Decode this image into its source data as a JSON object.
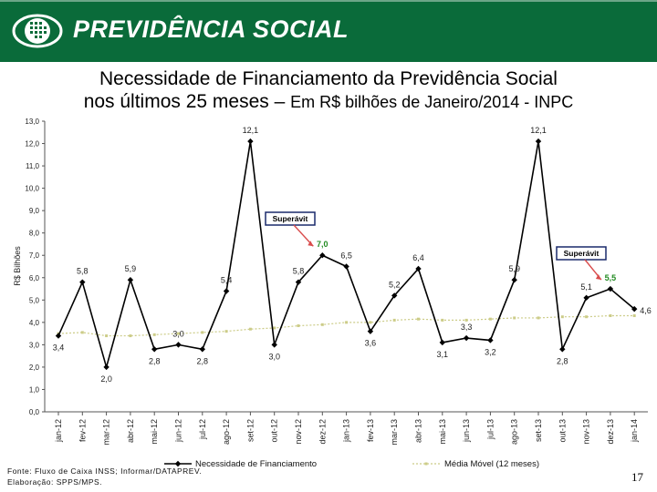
{
  "header": {
    "brand": "PREVIDÊNCIA SOCIAL"
  },
  "title": {
    "line1": "Necessidade de Financiamento da Previdência Social",
    "line2_main": "nos últimos 25 meses – ",
    "line2_sub": "Em R$ bilhões de Janeiro/2014 - INPC"
  },
  "source": {
    "line1": "Fonte: Fluxo de Caixa INSS; Informar/DATAPREV.",
    "line2": "Elaboração: SPPS/MPS."
  },
  "page_number": "17",
  "colors": {
    "header": "#0a6b3a",
    "series_main": "#000000",
    "series_avg": "#cccc88",
    "annotation_box": "#1a2a6c"
  },
  "chart_data": {
    "type": "line",
    "ylabel": "R$ Bilhões",
    "ylim": [
      0,
      13
    ],
    "yticks": [
      "0,0",
      "1,0",
      "2,0",
      "3,0",
      "4,0",
      "5,0",
      "6,0",
      "7,0",
      "8,0",
      "9,0",
      "10,0",
      "11,0",
      "12,0",
      "13,0"
    ],
    "categories": [
      "jan-12",
      "fev-12",
      "mar-12",
      "abr-12",
      "mai-12",
      "jun-12",
      "jul-12",
      "ago-12",
      "set-12",
      "out-12",
      "nov-12",
      "dez-12",
      "jan-13",
      "fev-13",
      "mar-13",
      "abr-13",
      "mai-13",
      "jun-13",
      "jul-13",
      "ago-13",
      "set-13",
      "out-13",
      "nov-13",
      "dez-13",
      "jan-14"
    ],
    "series": [
      {
        "name": "Necessidade de Financiamento",
        "values": [
          3.4,
          5.8,
          2.0,
          5.9,
          2.8,
          3.0,
          2.8,
          5.4,
          12.1,
          3.0,
          5.8,
          7.0,
          6.5,
          3.6,
          5.2,
          6.4,
          3.1,
          3.3,
          3.2,
          5.9,
          12.1,
          2.8,
          5.1,
          5.5,
          4.6
        ],
        "labels": [
          "3,4",
          "5,8",
          "2,0",
          "5,9",
          "2,8",
          "3,0",
          "2,8",
          "5,4",
          "12,1",
          "3,0",
          "5,8",
          "7,0",
          "6,5",
          "3,6",
          "5,2",
          "6,4",
          "3,1",
          "3,3",
          "3,2",
          "5,9",
          "12,1",
          "2,8",
          "5,1",
          "5,5",
          "4,6"
        ]
      },
      {
        "name": "Média Móvel (12 meses)",
        "values": [
          3.5,
          3.55,
          3.4,
          3.4,
          3.45,
          3.5,
          3.55,
          3.6,
          3.7,
          3.75,
          3.85,
          3.9,
          4.0,
          4.0,
          4.1,
          4.15,
          4.1,
          4.1,
          4.15,
          4.2,
          4.2,
          4.25,
          4.25,
          4.3,
          4.3
        ]
      }
    ],
    "annotations": [
      {
        "text": "Superávit",
        "target": "dez-12"
      },
      {
        "text": "Superávit",
        "target": "dez-13"
      }
    ],
    "legend": "bottom",
    "grid": false
  }
}
